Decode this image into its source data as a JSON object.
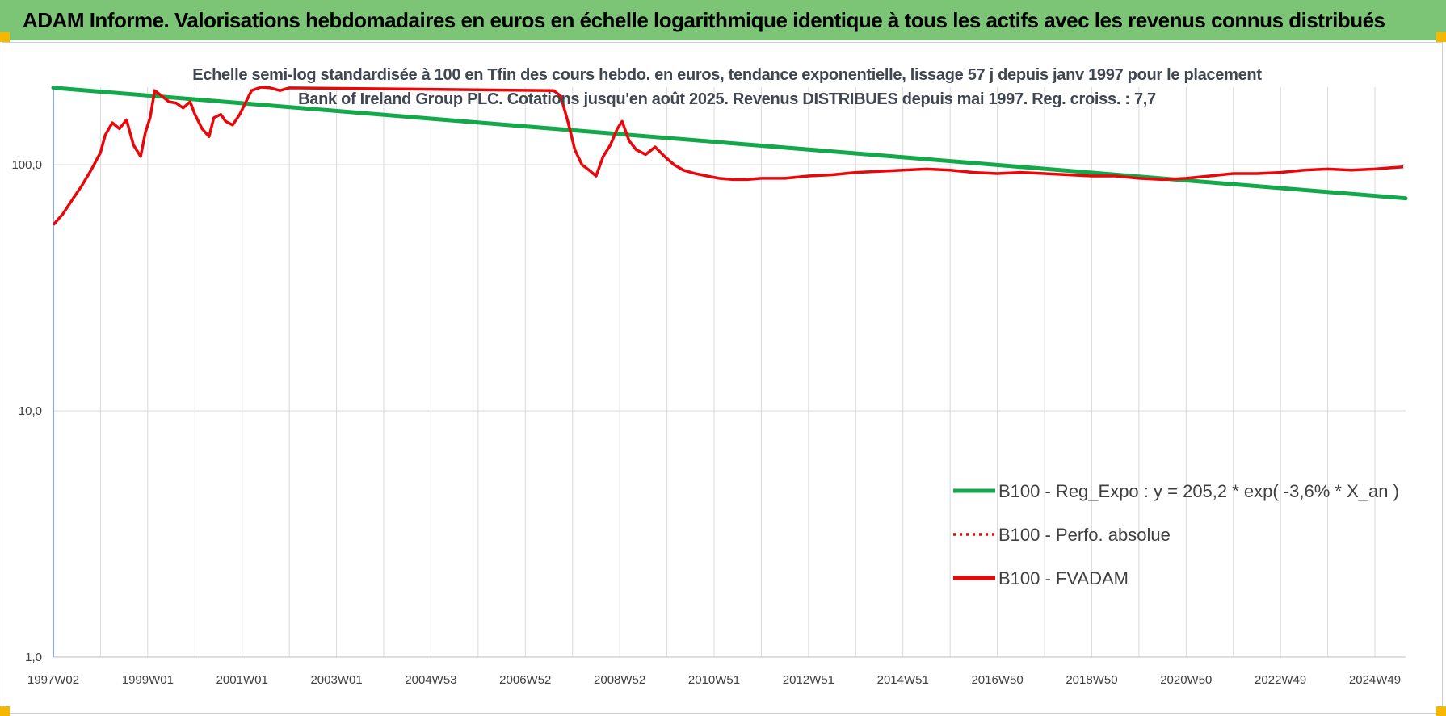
{
  "banner": {
    "title": "ADAM Informe. Valorisations hebdomadaires en euros en échelle logarithmique identique à tous les actifs avec les revenus connus distribués"
  },
  "colors": {
    "banner_bg": "#7cc576",
    "regression": "#13a84a",
    "fvadam": "#e8070a",
    "perfo": "#e8070a",
    "grid": "#d9d9d9",
    "axis": "#4472c4"
  },
  "chart_data": {
    "type": "line",
    "title": "Echelle semi-log standardisée à 100 en Tfin des cours hebdo. en euros, tendance exponentielle, lissage 57 j depuis janv 1997 pour le placement Bank of Ireland Group PLC. Cotations jusqu'en août 2025. Revenus DISTRIBUES depuis mai 1997. Reg. croiss. : 7,7",
    "y_scale": "log",
    "ylim": [
      1,
      200
    ],
    "y_ticks": [
      "1,0",
      "10,0",
      "100,0"
    ],
    "x_range": [
      1997.0,
      2025.65
    ],
    "x_tick_labels": [
      "1997W02",
      "1999W01",
      "2001W01",
      "2003W01",
      "2004W53",
      "2006W52",
      "2008W52",
      "2010W51",
      "2012W51",
      "2014W51",
      "2016W50",
      "2018W50",
      "2020W50",
      "2022W49",
      "2024W49"
    ],
    "x_tick_years": [
      1997.0,
      1999.0,
      2001.0,
      2003.0,
      2005.0,
      2007.0,
      2009.0,
      2011.0,
      2013.0,
      2015.0,
      2017.0,
      2019.0,
      2021.0,
      2023.0,
      2025.0
    ],
    "grid": true,
    "legend_position": "bottom-right",
    "series": [
      {
        "name": "B100 - Reg_Expo : y = 205,2 * exp( -3,6% *  X_an )",
        "style": "solid-thick",
        "x": [
          1997.0,
          2025.65
        ],
        "values": [
          205.2,
          73.0
        ]
      },
      {
        "name": "B100 - Perfo. absolue",
        "style": "dotted",
        "x": [],
        "values": []
      },
      {
        "name": "B100 - FVADAM",
        "style": "solid",
        "x": [
          1997.0,
          1997.2,
          1997.4,
          1997.6,
          1997.8,
          1998.0,
          1998.1,
          1998.25,
          1998.4,
          1998.55,
          1998.7,
          1998.85,
          1998.95,
          1999.05,
          1999.15,
          1999.3,
          1999.45,
          1999.6,
          1999.75,
          1999.9,
          2000.0,
          2000.15,
          2000.3,
          2000.4,
          2000.55,
          2000.65,
          2000.8,
          2000.95,
          2001.05,
          2001.2,
          2001.4,
          2001.6,
          2001.8,
          2002.0,
          2007.6,
          2007.75,
          2007.9,
          2008.05,
          2008.2,
          2008.35,
          2008.5,
          2008.65,
          2008.8,
          2008.95,
          2009.05,
          2009.2,
          2009.35,
          2009.55,
          2009.75,
          2009.95,
          2010.15,
          2010.35,
          2010.6,
          2010.85,
          2011.1,
          2011.4,
          2011.7,
          2012.0,
          2012.5,
          2013.0,
          2013.5,
          2014.0,
          2014.5,
          2015.0,
          2015.5,
          2016.0,
          2016.5,
          2017.0,
          2017.5,
          2018.0,
          2018.5,
          2019.0,
          2019.5,
          2020.0,
          2020.5,
          2021.0,
          2021.5,
          2022.0,
          2022.5,
          2023.0,
          2023.5,
          2024.0,
          2024.5,
          2025.0,
          2025.3,
          2025.6
        ],
        "values": [
          57,
          63,
          72,
          82,
          95,
          112,
          132,
          148,
          140,
          152,
          120,
          108,
          135,
          155,
          200,
          190,
          180,
          178,
          170,
          180,
          160,
          140,
          130,
          155,
          160,
          150,
          145,
          160,
          175,
          200,
          210,
          205,
          200,
          205,
          200,
          190,
          150,
          115,
          100,
          95,
          90,
          108,
          120,
          140,
          150,
          125,
          115,
          110,
          118,
          108,
          100,
          95,
          92,
          90,
          88,
          87,
          87,
          88,
          88,
          90,
          91,
          93,
          94,
          95,
          96,
          95,
          93,
          92,
          93,
          92,
          91,
          90,
          90,
          88,
          87,
          88,
          90,
          92,
          92,
          93,
          95,
          96,
          95,
          96,
          97,
          98
        ]
      }
    ]
  }
}
